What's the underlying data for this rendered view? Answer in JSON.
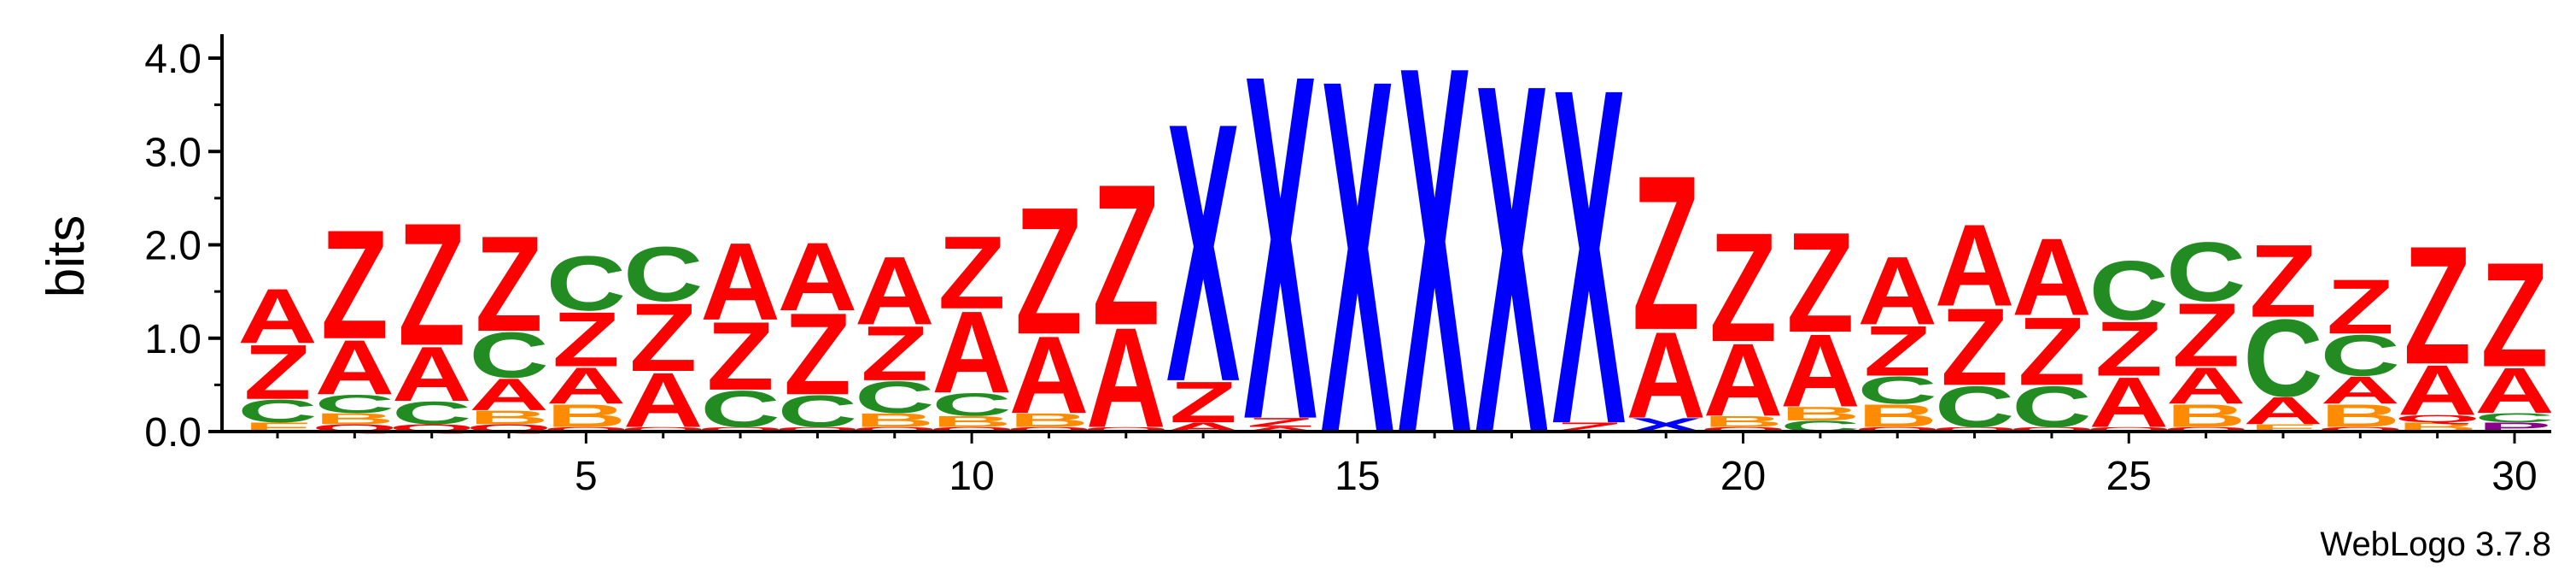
{
  "chart_data": {
    "type": "sequence-logo",
    "ylabel": "bits",
    "footer": "WebLogo 3.7.8",
    "ylim": [
      0,
      4.0
    ],
    "y_ticks": [
      0.0,
      1.0,
      2.0,
      3.0,
      4.0
    ],
    "y_tick_labels": [
      "0.0",
      "1.0",
      "2.0",
      "3.0",
      "4.0"
    ],
    "x_range": [
      1,
      30
    ],
    "x_ticks": [
      5,
      10,
      15,
      20,
      25,
      30
    ],
    "x_tick_labels": [
      "5",
      "10",
      "15",
      "20",
      "25",
      "30"
    ],
    "colors": {
      "Z": "#ff0000",
      "A": "#ff0000",
      "C": "#228b22",
      "B": "#ff8c00",
      "X": "#0000ff",
      "Q": "#ff0000",
      "F": "#ff8c00",
      "P": "#8b008b"
    },
    "positions": [
      {
        "pos": 1,
        "stack": [
          [
            "F",
            0.1
          ],
          [
            "C",
            0.25
          ],
          [
            "Z",
            0.6
          ],
          [
            "A",
            0.6
          ]
        ]
      },
      {
        "pos": 2,
        "stack": [
          [
            "Q",
            0.08
          ],
          [
            "B",
            0.12
          ],
          [
            "C",
            0.2
          ],
          [
            "A",
            0.6
          ],
          [
            "Z",
            1.2
          ]
        ]
      },
      {
        "pos": 3,
        "stack": [
          [
            "Q",
            0.08
          ],
          [
            "C",
            0.25
          ],
          [
            "A",
            0.6
          ],
          [
            "Z",
            1.35
          ]
        ]
      },
      {
        "pos": 4,
        "stack": [
          [
            "Q",
            0.08
          ],
          [
            "B",
            0.15
          ],
          [
            "A",
            0.35
          ],
          [
            "C",
            0.5
          ],
          [
            "Z",
            1.05
          ]
        ]
      },
      {
        "pos": 5,
        "stack": [
          [
            "Q",
            0.05
          ],
          [
            "B",
            0.25
          ],
          [
            "A",
            0.4
          ],
          [
            "Z",
            0.6
          ],
          [
            "C",
            0.6
          ]
        ]
      },
      {
        "pos": 6,
        "stack": [
          [
            "Q",
            0.05
          ],
          [
            "A",
            0.6
          ],
          [
            "Z",
            0.75
          ],
          [
            "C",
            0.6
          ]
        ]
      },
      {
        "pos": 7,
        "stack": [
          [
            "Q",
            0.05
          ],
          [
            "C",
            0.4
          ],
          [
            "Z",
            0.75
          ],
          [
            "A",
            0.85
          ]
        ]
      },
      {
        "pos": 8,
        "stack": [
          [
            "Q",
            0.05
          ],
          [
            "C",
            0.35
          ],
          [
            "Z",
            0.9
          ],
          [
            "A",
            0.75
          ]
        ]
      },
      {
        "pos": 9,
        "stack": [
          [
            "Q",
            0.05
          ],
          [
            "B",
            0.15
          ],
          [
            "C",
            0.35
          ],
          [
            "Z",
            0.6
          ],
          [
            "A",
            0.75
          ]
        ]
      },
      {
        "pos": 10,
        "stack": [
          [
            "Q",
            0.05
          ],
          [
            "B",
            0.12
          ],
          [
            "C",
            0.25
          ],
          [
            "A",
            0.9
          ],
          [
            "Z",
            0.8
          ]
        ]
      },
      {
        "pos": 11,
        "stack": [
          [
            "Q",
            0.05
          ],
          [
            "B",
            0.15
          ],
          [
            "A",
            0.85
          ],
          [
            "Z",
            1.4
          ]
        ]
      },
      {
        "pos": 12,
        "stack": [
          [
            "Q",
            0.05
          ],
          [
            "A",
            1.1
          ],
          [
            "Z",
            1.55
          ]
        ]
      },
      {
        "pos": 13,
        "stack": [
          [
            "A",
            0.1
          ],
          [
            "Z",
            0.45
          ],
          [
            "X",
            2.85
          ]
        ]
      },
      {
        "pos": 14,
        "stack": [
          [
            "A",
            0.05
          ],
          [
            "Z",
            0.1
          ],
          [
            "X",
            3.8
          ]
        ]
      },
      {
        "pos": 15,
        "stack": [
          [
            "X",
            3.9
          ]
        ]
      },
      {
        "pos": 16,
        "stack": [
          [
            "X",
            4.05
          ]
        ]
      },
      {
        "pos": 17,
        "stack": [
          [
            "X",
            3.85
          ]
        ]
      },
      {
        "pos": 18,
        "stack": [
          [
            "Z",
            0.1
          ],
          [
            "X",
            3.7
          ]
        ]
      },
      {
        "pos": 19,
        "stack": [
          [
            "X",
            0.15
          ],
          [
            "A",
            0.95
          ],
          [
            "Z",
            1.7
          ]
        ]
      },
      {
        "pos": 20,
        "stack": [
          [
            "Q",
            0.05
          ],
          [
            "B",
            0.12
          ],
          [
            "A",
            0.8
          ],
          [
            "Z",
            1.2
          ]
        ]
      },
      {
        "pos": 21,
        "stack": [
          [
            "C",
            0.12
          ],
          [
            "B",
            0.15
          ],
          [
            "A",
            0.8
          ],
          [
            "Z",
            1.1
          ]
        ]
      },
      {
        "pos": 22,
        "stack": [
          [
            "Q",
            0.05
          ],
          [
            "B",
            0.25
          ],
          [
            "C",
            0.3
          ],
          [
            "Z",
            0.55
          ],
          [
            "A",
            0.75
          ]
        ]
      },
      {
        "pos": 23,
        "stack": [
          [
            "Q",
            0.05
          ],
          [
            "C",
            0.45
          ],
          [
            "Z",
            0.85
          ],
          [
            "A",
            0.9
          ]
        ]
      },
      {
        "pos": 24,
        "stack": [
          [
            "Q",
            0.05
          ],
          [
            "C",
            0.45
          ],
          [
            "Z",
            0.75
          ],
          [
            "A",
            0.85
          ]
        ]
      },
      {
        "pos": 25,
        "stack": [
          [
            "Q",
            0.05
          ],
          [
            "A",
            0.55
          ],
          [
            "Z",
            0.6
          ],
          [
            "C",
            0.65
          ]
        ]
      },
      {
        "pos": 26,
        "stack": [
          [
            "Q",
            0.05
          ],
          [
            "B",
            0.25
          ],
          [
            "A",
            0.4
          ],
          [
            "Z",
            0.7
          ],
          [
            "C",
            0.65
          ]
        ]
      },
      {
        "pos": 27,
        "stack": [
          [
            "F",
            0.08
          ],
          [
            "A",
            0.3
          ],
          [
            "C",
            0.85
          ],
          [
            "Z",
            0.8
          ]
        ]
      },
      {
        "pos": 28,
        "stack": [
          [
            "Q",
            0.05
          ],
          [
            "B",
            0.25
          ],
          [
            "A",
            0.3
          ],
          [
            "C",
            0.45
          ],
          [
            "Z",
            0.6
          ]
        ]
      },
      {
        "pos": 29,
        "stack": [
          [
            "B",
            0.1
          ],
          [
            "Q",
            0.08
          ],
          [
            "A",
            0.55
          ],
          [
            "Z",
            1.3
          ]
        ]
      },
      {
        "pos": 30,
        "stack": [
          [
            "P",
            0.1
          ],
          [
            "C",
            0.1
          ],
          [
            "A",
            0.5
          ],
          [
            "Z",
            1.15
          ]
        ]
      }
    ]
  }
}
